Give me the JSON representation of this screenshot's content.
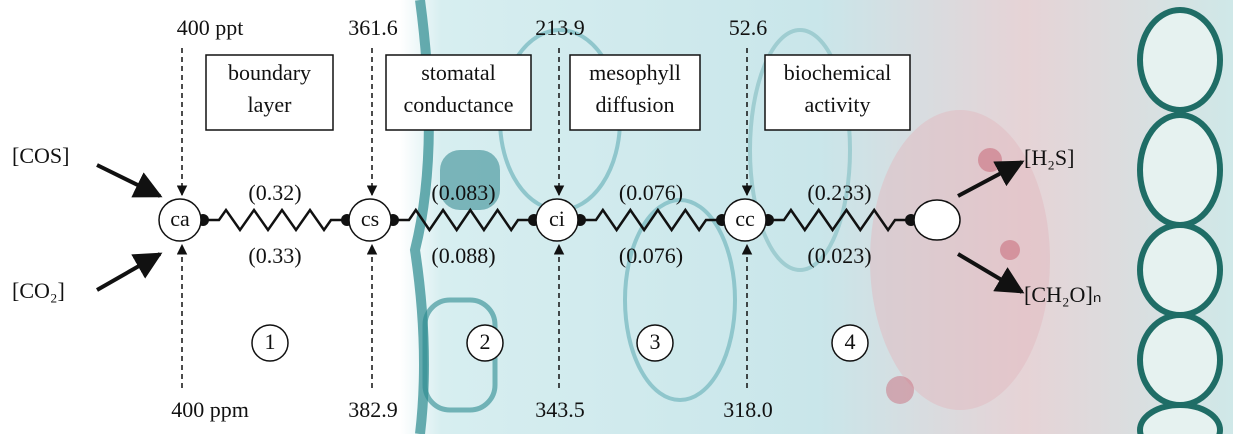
{
  "inputs": [
    "[COS]",
    "[CO₂]"
  ],
  "outputs": [
    "[H₂S]",
    "[CH₂O]ₙ"
  ],
  "nodes": [
    {
      "label": "ca",
      "top": "400 ppt",
      "bottom": "400 ppm"
    },
    {
      "label": "cs",
      "top": "361.6",
      "bottom": "382.9"
    },
    {
      "label": "ci",
      "top": "213.9",
      "bottom": "343.5"
    },
    {
      "label": "cc",
      "top": "52.6",
      "bottom": "318.0"
    }
  ],
  "resistors": [
    {
      "top": "(0.32)",
      "bottom": "(0.33)"
    },
    {
      "top": "(0.083)",
      "bottom": "(0.088)"
    },
    {
      "top": "(0.076)",
      "bottom": "(0.076)"
    },
    {
      "top": "(0.233)",
      "bottom": "(0.023)"
    }
  ],
  "stages": [
    {
      "number": "1",
      "label": [
        "boundary",
        "layer"
      ]
    },
    {
      "number": "2",
      "label": [
        "stomatal",
        "conductance"
      ]
    },
    {
      "number": "3",
      "label": [
        "mesophyll",
        "diffusion"
      ]
    },
    {
      "number": "4",
      "label": [
        "biochemical",
        "activity"
      ]
    }
  ]
}
